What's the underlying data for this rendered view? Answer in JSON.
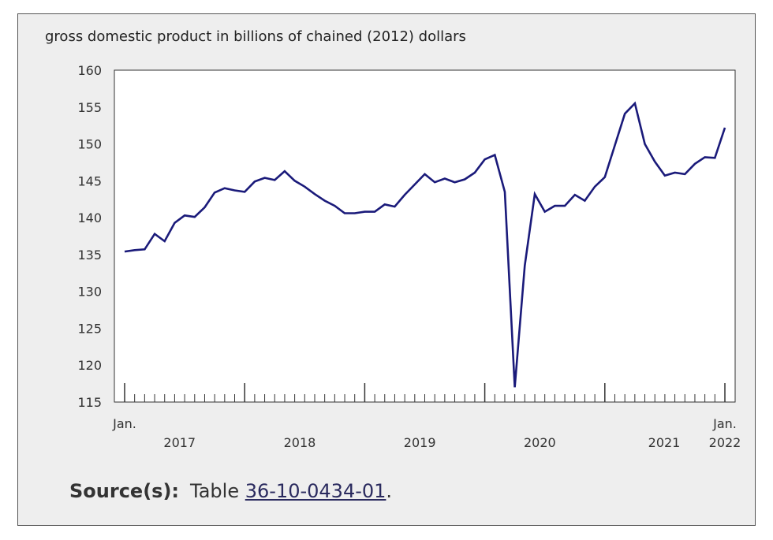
{
  "chart_data": {
    "type": "line",
    "title": "",
    "ylabel": "gross domestic product in billions of chained (2012) dollars",
    "xlabel": "",
    "ylim": [
      115,
      160
    ],
    "yticks": [
      115,
      120,
      125,
      130,
      135,
      140,
      145,
      150,
      155,
      160
    ],
    "x_start": "2017-01",
    "x_end": "2022-01",
    "x_labels": {
      "month_first": "Jan.",
      "month_last": "Jan.",
      "years": [
        "2017",
        "2018",
        "2019",
        "2020",
        "2021",
        "2022"
      ]
    },
    "grid": false,
    "line_color": "#1a1a7a",
    "series": [
      {
        "values": [
          135.4,
          135.6,
          135.7,
          137.8,
          136.8,
          139.3,
          140.3,
          140.1,
          141.4,
          143.4,
          144.0,
          143.7,
          143.5,
          144.9,
          145.4,
          145.1,
          146.3,
          145.0,
          144.2,
          143.2,
          142.3,
          141.6,
          140.6,
          140.6,
          140.8,
          140.8,
          141.8,
          141.5,
          143.1,
          144.5,
          145.9,
          144.8,
          145.3,
          144.8,
          145.2,
          146.1,
          147.9,
          148.5,
          143.5,
          117.0,
          133.5,
          143.2,
          140.8,
          141.6,
          141.6,
          143.1,
          142.3,
          144.2,
          145.5,
          149.8,
          154.1,
          155.5,
          150.0,
          147.6,
          145.7,
          146.1,
          145.9,
          147.3,
          148.2,
          148.1,
          152.2
        ]
      }
    ]
  },
  "source": {
    "label": "Source(s):",
    "text": "Table ",
    "link": "36-10-0434-01",
    "suffix": "."
  }
}
